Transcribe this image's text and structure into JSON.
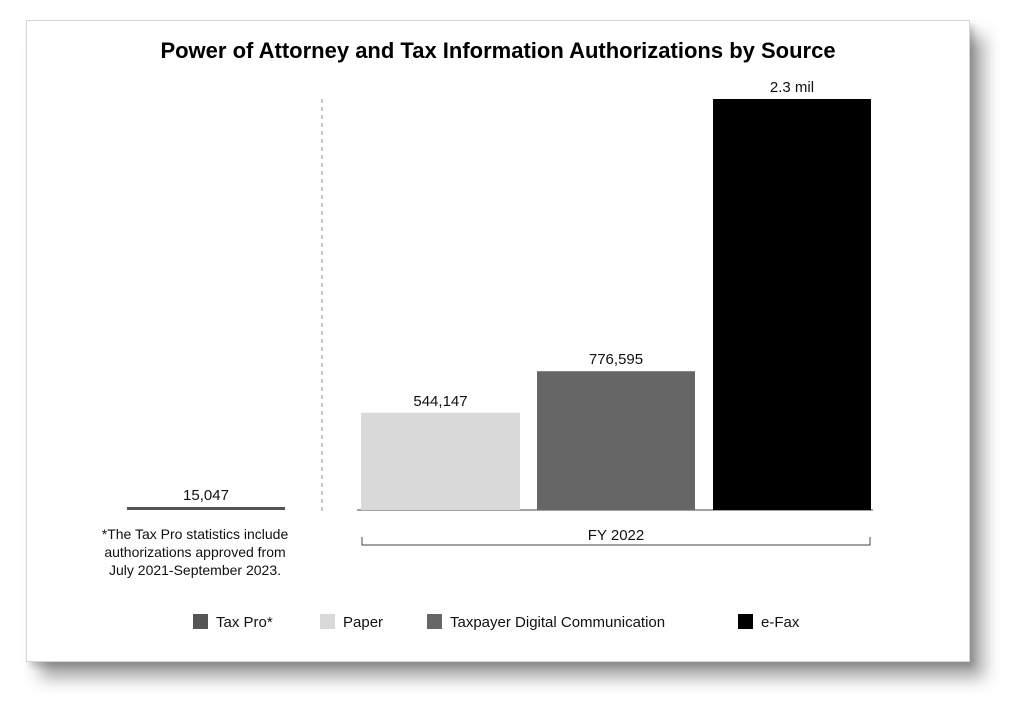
{
  "chart_data": {
    "type": "bar",
    "title": "Power of Attorney and Tax Information Authorizations by Source",
    "series": [
      {
        "name": "Tax Pro*",
        "value": 15047,
        "label": "15,047",
        "color": "#555555"
      },
      {
        "name": "Paper",
        "value": 544147,
        "label": "544,147",
        "color": "#d9d9d9"
      },
      {
        "name": "Taxpayer Digital Communication",
        "value": 776595,
        "label": "776,595",
        "color": "#666666"
      },
      {
        "name": "e-Fax",
        "value": 2300000,
        "label": "2.3 mil",
        "color": "#000000"
      }
    ],
    "category_label": "FY 2022",
    "footnote": [
      "*The Tax Pro statistics include",
      "authorizations approved from",
      "July 2021-September 2023."
    ],
    "legend_position": "bottom",
    "grid": false
  }
}
